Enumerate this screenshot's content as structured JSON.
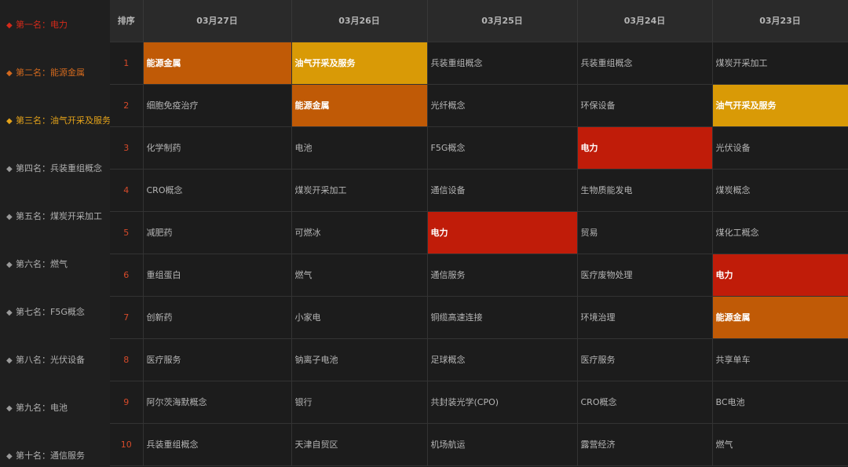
{
  "colors": {
    "rank1": "#c01c09",
    "rank2": "#c05a06",
    "rank3": "#d99a06",
    "background": "#1c1c1c",
    "header": "#2a2a2a"
  },
  "sidebar": {
    "items": [
      {
        "icon": "diamond-icon",
        "label": "第一名：电力"
      },
      {
        "icon": "diamond-icon",
        "label": "第二名：能源金属"
      },
      {
        "icon": "diamond-icon",
        "label": "第三名：油气开采及服务"
      },
      {
        "icon": "diamond-icon",
        "label": "第四名：兵装重组概念"
      },
      {
        "icon": "diamond-icon",
        "label": "第五名：煤炭开采加工"
      },
      {
        "icon": "diamond-icon",
        "label": "第六名：燃气"
      },
      {
        "icon": "diamond-icon",
        "label": "第七名：F5G概念"
      },
      {
        "icon": "diamond-icon",
        "label": "第八名：光伏设备"
      },
      {
        "icon": "diamond-icon",
        "label": "第九名：电池"
      },
      {
        "icon": "diamond-icon",
        "label": "第十名：通信服务"
      }
    ]
  },
  "table": {
    "rank_header": "排序",
    "dates": [
      "03月27日",
      "03月26日",
      "03月25日",
      "03月24日",
      "03月23日"
    ],
    "rows": [
      {
        "rank": "1",
        "cells": [
          "能源金属",
          "油气开采及服务",
          "兵装重组概念",
          "兵装重组概念",
          "煤炭开采加工"
        ],
        "hl": [
          2,
          3,
          0,
          0,
          0
        ]
      },
      {
        "rank": "2",
        "cells": [
          "细胞免疫治疗",
          "能源金属",
          "光纤概念",
          "环保设备",
          "油气开采及服务"
        ],
        "hl": [
          0,
          2,
          0,
          0,
          3
        ]
      },
      {
        "rank": "3",
        "cells": [
          "化学制药",
          "电池",
          "F5G概念",
          "电力",
          "光伏设备"
        ],
        "hl": [
          0,
          0,
          0,
          1,
          0
        ]
      },
      {
        "rank": "4",
        "cells": [
          "CRO概念",
          "煤炭开采加工",
          "通信设备",
          "生物质能发电",
          "煤炭概念"
        ],
        "hl": [
          0,
          0,
          0,
          0,
          0
        ]
      },
      {
        "rank": "5",
        "cells": [
          "减肥药",
          "可燃冰",
          "电力",
          "贸易",
          "煤化工概念"
        ],
        "hl": [
          0,
          0,
          1,
          0,
          0
        ]
      },
      {
        "rank": "6",
        "cells": [
          "重组蛋白",
          "燃气",
          "通信服务",
          "医疗废物处理",
          "电力"
        ],
        "hl": [
          0,
          0,
          0,
          0,
          1
        ]
      },
      {
        "rank": "7",
        "cells": [
          "创新药",
          "小家电",
          "铜缆高速连接",
          "环境治理",
          "能源金属"
        ],
        "hl": [
          0,
          0,
          0,
          0,
          2
        ]
      },
      {
        "rank": "8",
        "cells": [
          "医疗服务",
          "钠离子电池",
          "足球概念",
          "医疗服务",
          "共享单车"
        ],
        "hl": [
          0,
          0,
          0,
          0,
          0
        ]
      },
      {
        "rank": "9",
        "cells": [
          "阿尔茨海默概念",
          "银行",
          "共封装光学(CPO)",
          "CRO概念",
          "BC电池"
        ],
        "hl": [
          0,
          0,
          0,
          0,
          0
        ]
      },
      {
        "rank": "10",
        "cells": [
          "兵装重组概念",
          "天津自贸区",
          "机场航运",
          "露营经济",
          "燃气"
        ],
        "hl": [
          0,
          0,
          0,
          0,
          0
        ]
      }
    ]
  }
}
